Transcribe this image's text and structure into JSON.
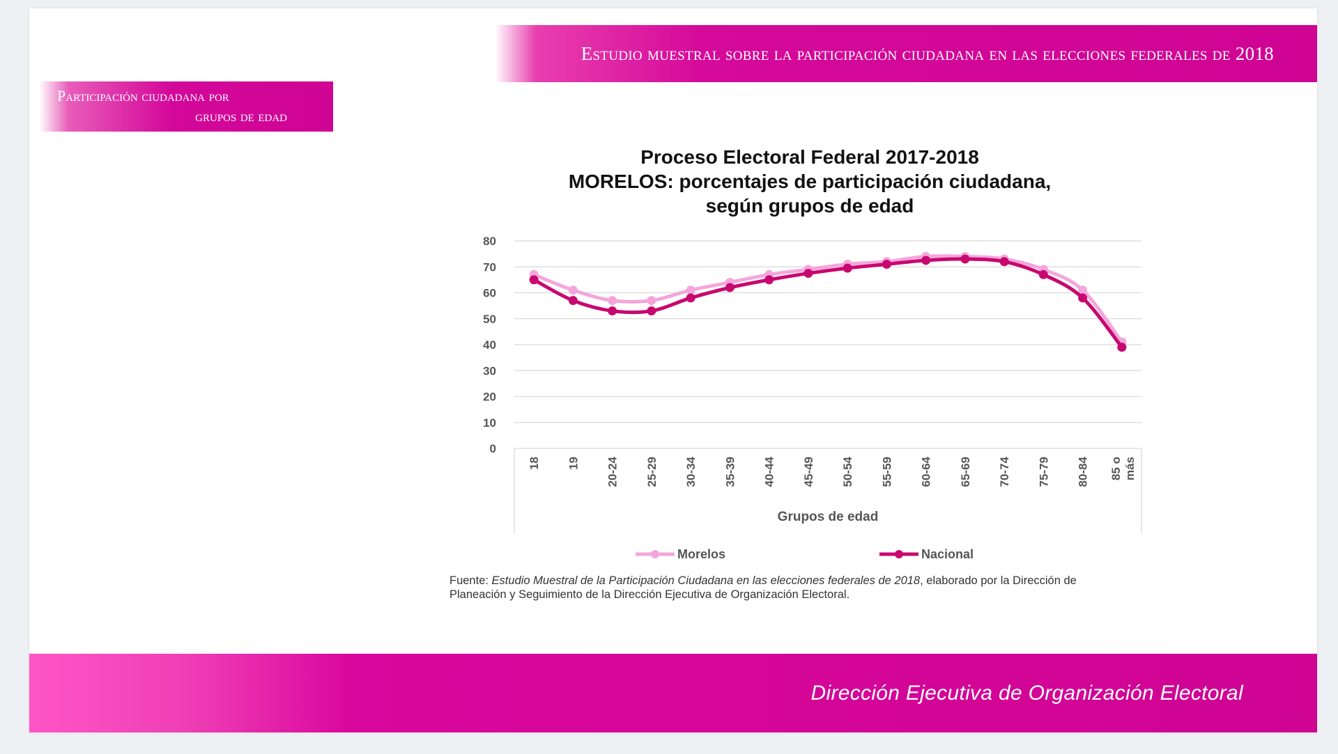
{
  "header": {
    "banner_title": "Estudio muestral sobre la participación ciudadana en las elecciones federales de 2018",
    "section_label_line1": "Participación ciudadana por",
    "section_label_line2": "grupos de edad"
  },
  "chart_data": {
    "type": "line",
    "title_lines": [
      "Proceso Electoral Federal 2017-2018",
      "MORELOS: porcentajes de participación ciudadana,",
      "según grupos de edad"
    ],
    "xlabel": "Grupos de edad",
    "ylabel": "",
    "ylim": [
      0,
      80
    ],
    "yticks": [
      0,
      10,
      20,
      30,
      40,
      50,
      60,
      70,
      80
    ],
    "grid": true,
    "legend_position": "bottom",
    "categories": [
      "18",
      "19",
      "20-24",
      "25-29",
      "30-34",
      "35-39",
      "40-44",
      "45-49",
      "50-54",
      "55-59",
      "60-64",
      "65-69",
      "70-74",
      "75-79",
      "80-84",
      "85 o más"
    ],
    "series": [
      {
        "name": "Morelos",
        "color": "#f4a6dc",
        "values": [
          67,
          61,
          57,
          57,
          61,
          64,
          67,
          69,
          71,
          72,
          74,
          74,
          73,
          69,
          61,
          41
        ]
      },
      {
        "name": "Nacional",
        "color": "#c8086f",
        "values": [
          65,
          57,
          53,
          53,
          58,
          62,
          65,
          67.5,
          69.5,
          71,
          72.5,
          73,
          72,
          67,
          58,
          39
        ]
      }
    ]
  },
  "source_note": {
    "prefix": "Fuente: ",
    "italic": "Estudio Muestral de la Participación Ciudadana en las elecciones federales de 2018",
    "suffix": ", elaborado por la Dirección de Planeación y Seguimiento de la Dirección Ejecutiva de Organización Electoral."
  },
  "footer": {
    "text": "Dirección Ejecutiva de Organización Electoral"
  }
}
